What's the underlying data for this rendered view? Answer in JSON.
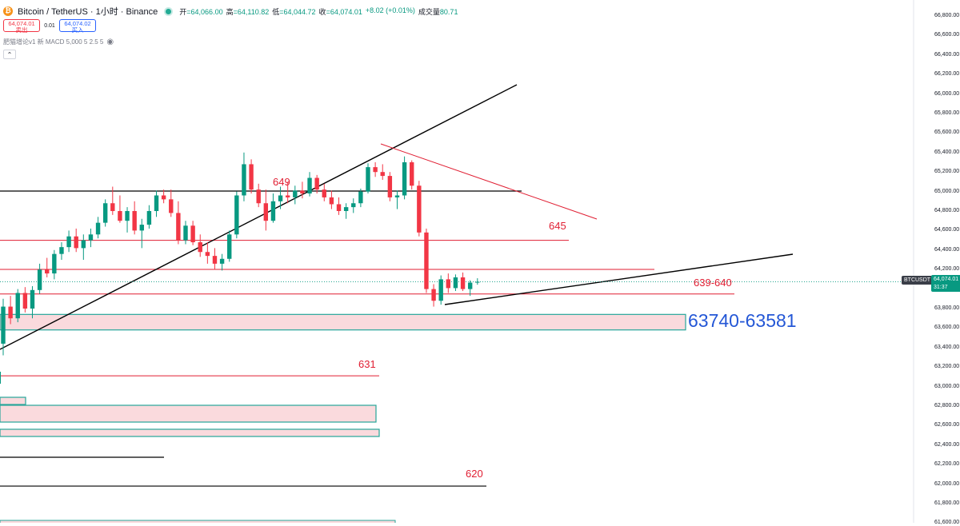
{
  "header": {
    "title": "Bitcoin / TetherUS · 1小时 · Binance",
    "coin_glyph": "₿",
    "ohlc": [
      {
        "label": "开",
        "value": "=64,066.00"
      },
      {
        "label": "高",
        "value": "=64,110.82"
      },
      {
        "label": "低",
        "value": "=64,044.72"
      },
      {
        "label": "收",
        "value": "=64,074.01"
      },
      {
        "label": "",
        "value": "+8.02 (+0.01%)"
      },
      {
        "label": "成交量",
        "value": "80.71"
      }
    ]
  },
  "trade": {
    "sell_price": "64,074.01",
    "sell_label": "卖出",
    "spread": "0.01",
    "buy_price": "64,074.02",
    "buy_label": "买入"
  },
  "indicator": {
    "label": "肥猫增论v1 新 MACD 5,000 5 2.5 5",
    "icon": "eye-icon"
  },
  "collapse_icon": "chevron-up-icon",
  "price_axis": {
    "ticks": [
      "66,800.00",
      "66,600.00",
      "66,400.00",
      "66,200.00",
      "66,000.00",
      "65,800.00",
      "65,600.00",
      "65,400.00",
      "65,200.00",
      "65,000.00",
      "64,800.00",
      "64,600.00",
      "64,400.00",
      "64,200.00",
      "64,000.00",
      "63,800.00",
      "63,600.00",
      "63,400.00",
      "63,200.00",
      "63,000.00",
      "62,800.00",
      "62,600.00",
      "62,400.00",
      "62,200.00",
      "62,000.00",
      "61,800.00",
      "61,600.00"
    ],
    "symbol_tag": "BTCUSDT",
    "last_price": "64,074.01",
    "countdown": "31:37"
  },
  "colors": {
    "up": "#089981",
    "down": "#f23645",
    "level_line": "#e01e32",
    "zone_fill": "#fadadd",
    "zone_border": "#26a69a",
    "zone_label": "#2457d6"
  },
  "chart_data": {
    "type": "candlestick",
    "title": "Bitcoin / TetherUS · 1小时 · Binance",
    "ylim": [
      61500,
      66900
    ],
    "last_price": 64074.01,
    "candles": [
      [
        63440,
        63900,
        63320,
        63820
      ],
      [
        63820,
        63930,
        63640,
        63700
      ],
      [
        63700,
        64000,
        63660,
        63960
      ],
      [
        63960,
        64020,
        63760,
        63800
      ],
      [
        63800,
        64030,
        63700,
        63990
      ],
      [
        63990,
        64260,
        63950,
        64200
      ],
      [
        64200,
        64320,
        64120,
        64160
      ],
      [
        64160,
        64400,
        64100,
        64360
      ],
      [
        64360,
        64480,
        64300,
        64430
      ],
      [
        64430,
        64600,
        64380,
        64540
      ],
      [
        64540,
        64620,
        64380,
        64420
      ],
      [
        64420,
        64560,
        64300,
        64500
      ],
      [
        64500,
        64620,
        64430,
        64560
      ],
      [
        64560,
        64740,
        64520,
        64680
      ],
      [
        64680,
        64920,
        64640,
        64880
      ],
      [
        64880,
        65050,
        64760,
        64800
      ],
      [
        64800,
        64960,
        64680,
        64700
      ],
      [
        64700,
        64840,
        64580,
        64800
      ],
      [
        64800,
        64900,
        64560,
        64600
      ],
      [
        64600,
        64720,
        64420,
        64660
      ],
      [
        64660,
        64860,
        64620,
        64800
      ],
      [
        64800,
        65010,
        64740,
        64960
      ],
      [
        64960,
        65020,
        64880,
        64920
      ],
      [
        64920,
        65020,
        64740,
        64780
      ],
      [
        64780,
        64900,
        64460,
        64500
      ],
      [
        64500,
        64700,
        64460,
        64650
      ],
      [
        64650,
        64700,
        64450,
        64480
      ],
      [
        64480,
        64560,
        64330,
        64380
      ],
      [
        64380,
        64480,
        64260,
        64340
      ],
      [
        64340,
        64420,
        64200,
        64260
      ],
      [
        64260,
        64360,
        64190,
        64310
      ],
      [
        64310,
        64600,
        64280,
        64560
      ],
      [
        64560,
        65000,
        64520,
        64960
      ],
      [
        64960,
        65400,
        64900,
        65280
      ],
      [
        65280,
        65330,
        64980,
        65020
      ],
      [
        65020,
        65080,
        64840,
        64880
      ],
      [
        64880,
        65020,
        64600,
        64700
      ],
      [
        64700,
        64980,
        64680,
        64900
      ],
      [
        64900,
        65050,
        64820,
        64960
      ],
      [
        64960,
        65100,
        64880,
        64940
      ],
      [
        64940,
        65060,
        64870,
        65010
      ],
      [
        65010,
        65100,
        64930,
        64980
      ],
      [
        64980,
        65200,
        64950,
        65140
      ],
      [
        65140,
        65170,
        64980,
        65020
      ],
      [
        65020,
        65080,
        64900,
        64940
      ],
      [
        64940,
        65010,
        64820,
        64870
      ],
      [
        64870,
        64940,
        64760,
        64800
      ],
      [
        64800,
        64880,
        64720,
        64840
      ],
      [
        64840,
        64930,
        64780,
        64880
      ],
      [
        64880,
        65030,
        64840,
        65000
      ],
      [
        65000,
        65290,
        64980,
        65250
      ],
      [
        65250,
        65300,
        65150,
        65200
      ],
      [
        65200,
        65280,
        65120,
        65160
      ],
      [
        65160,
        65200,
        64900,
        64940
      ],
      [
        64940,
        65010,
        64820,
        64960
      ],
      [
        64960,
        65360,
        64920,
        65300
      ],
      [
        65300,
        65320,
        65020,
        65060
      ],
      [
        65060,
        65110,
        64540,
        64580
      ],
      [
        64580,
        64620,
        63960,
        64000
      ],
      [
        64000,
        64050,
        63820,
        63880
      ],
      [
        63880,
        64140,
        63840,
        64100
      ],
      [
        64100,
        64160,
        63960,
        64010
      ],
      [
        64010,
        64150,
        63980,
        64120
      ],
      [
        64120,
        64170,
        63980,
        64000
      ],
      [
        64000,
        64090,
        63930,
        64066
      ],
      [
        64066,
        64110.82,
        64044.72,
        64074.01
      ]
    ],
    "levels": [
      {
        "label": "649"
      },
      {
        "label": "645",
        "value": 64500
      },
      {
        "label": "639-640",
        "value": 63950
      },
      {
        "label": "631",
        "value": 63110
      },
      {
        "label": "620",
        "value": 61980
      }
    ],
    "zones": [
      {
        "label": "63740-63581",
        "high": 63740,
        "low": 63581
      }
    ]
  }
}
